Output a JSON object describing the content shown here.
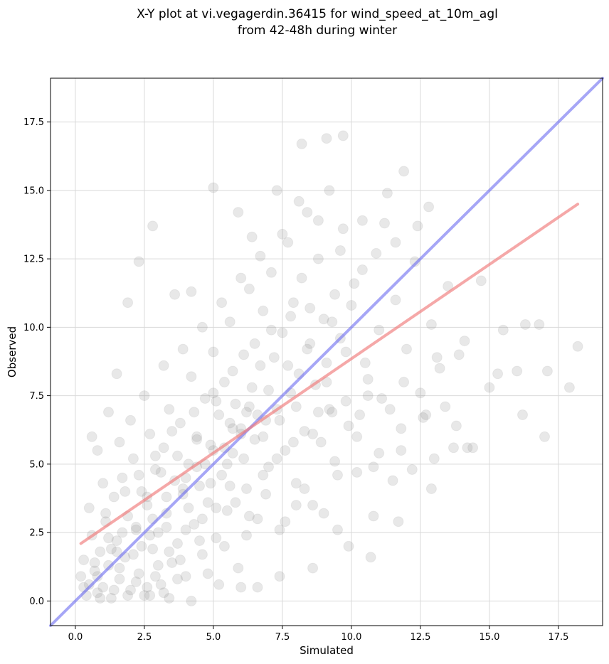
{
  "chart_data": {
    "type": "scatter",
    "title_line1": "X-Y plot at vi.vegagerdin.36415 for wind_speed_at_10m_agl",
    "title_line2": "from 42-48h during winter",
    "xlabel": "Simulated",
    "ylabel": "Observed",
    "xlim": [
      -0.9,
      19.1
    ],
    "ylim": [
      -0.9,
      19.1
    ],
    "xticks": [
      "0.0",
      "2.5",
      "5.0",
      "7.5",
      "10.0",
      "12.5",
      "15.0",
      "17.5"
    ],
    "yticks": [
      "0.0",
      "2.5",
      "5.0",
      "7.5",
      "10.0",
      "12.5",
      "15.0",
      "17.5"
    ],
    "grid": true,
    "point_color": "#808080",
    "point_alpha": 0.18,
    "identity_line": {
      "from": [
        -0.9,
        -0.9
      ],
      "to": [
        19.1,
        19.1
      ],
      "color": "#6b6bf0"
    },
    "regression_line": {
      "from": [
        0.2,
        2.1
      ],
      "to": [
        18.2,
        14.5
      ],
      "color": "#f07a7a"
    },
    "points": [
      [
        0.2,
        0.9
      ],
      [
        0.4,
        0.2
      ],
      [
        0.3,
        1.5
      ],
      [
        0.5,
        0.6
      ],
      [
        0.6,
        2.4
      ],
      [
        0.7,
        1.1
      ],
      [
        0.8,
        0.3
      ],
      [
        0.5,
        3.4
      ],
      [
        0.9,
        1.8
      ],
      [
        1.0,
        0.5
      ],
      [
        1.1,
        2.9
      ],
      [
        1.2,
        1.3
      ],
      [
        1.3,
        0.1
      ],
      [
        1.4,
        3.8
      ],
      [
        1.5,
        2.2
      ],
      [
        1.6,
        0.8
      ],
      [
        1.7,
        4.5
      ],
      [
        1.8,
        1.6
      ],
      [
        1.9,
        3.1
      ],
      [
        2.0,
        0.4
      ],
      [
        2.1,
        5.2
      ],
      [
        2.2,
        2.7
      ],
      [
        2.3,
        1.0
      ],
      [
        2.4,
        4.0
      ],
      [
        2.5,
        0.2
      ],
      [
        2.6,
        3.5
      ],
      [
        2.7,
        6.1
      ],
      [
        2.8,
        1.9
      ],
      [
        2.9,
        4.8
      ],
      [
        3.0,
        2.5
      ],
      [
        3.1,
        0.6
      ],
      [
        3.2,
        5.6
      ],
      [
        3.3,
        3.2
      ],
      [
        3.4,
        7.0
      ],
      [
        3.5,
        1.4
      ],
      [
        3.6,
        4.4
      ],
      [
        3.7,
        2.1
      ],
      [
        3.8,
        6.5
      ],
      [
        3.9,
        3.9
      ],
      [
        4.0,
        0.9
      ],
      [
        4.1,
        5.0
      ],
      [
        4.2,
        8.2
      ],
      [
        4.3,
        2.8
      ],
      [
        4.4,
        6.0
      ],
      [
        4.5,
        4.2
      ],
      [
        4.6,
        1.7
      ],
      [
        4.7,
        7.4
      ],
      [
        4.8,
        3.6
      ],
      [
        4.9,
        5.7
      ],
      [
        5.0,
        9.1
      ],
      [
        5.1,
        2.3
      ],
      [
        5.2,
        6.8
      ],
      [
        5.3,
        4.6
      ],
      [
        5.4,
        8.0
      ],
      [
        5.5,
        3.3
      ],
      [
        5.6,
        10.2
      ],
      [
        5.7,
        5.4
      ],
      [
        5.8,
        7.2
      ],
      [
        5.9,
        1.2
      ],
      [
        6.0,
        6.3
      ],
      [
        6.1,
        9.0
      ],
      [
        6.2,
        4.1
      ],
      [
        6.3,
        11.4
      ],
      [
        6.4,
        7.8
      ],
      [
        6.5,
        5.9
      ],
      [
        6.6,
        3.0
      ],
      [
        6.7,
        8.6
      ],
      [
        6.8,
        10.6
      ],
      [
        6.9,
        6.6
      ],
      [
        7.0,
        4.9
      ],
      [
        7.1,
        12.0
      ],
      [
        7.2,
        8.9
      ],
      [
        7.3,
        7.0
      ],
      [
        7.4,
        2.6
      ],
      [
        7.5,
        9.8
      ],
      [
        7.6,
        5.5
      ],
      [
        7.7,
        13.1
      ],
      [
        7.8,
        7.6
      ],
      [
        7.9,
        10.9
      ],
      [
        8.0,
        4.3
      ],
      [
        8.1,
        8.3
      ],
      [
        8.2,
        11.8
      ],
      [
        8.3,
        6.2
      ],
      [
        8.4,
        14.2
      ],
      [
        8.5,
        9.4
      ],
      [
        8.6,
        3.5
      ],
      [
        8.7,
        7.9
      ],
      [
        8.8,
        12.5
      ],
      [
        8.9,
        5.8
      ],
      [
        9.0,
        10.3
      ],
      [
        9.1,
        8.7
      ],
      [
        9.2,
        15.0
      ],
      [
        9.3,
        6.9
      ],
      [
        9.4,
        11.2
      ],
      [
        9.5,
        4.6
      ],
      [
        9.6,
        9.6
      ],
      [
        9.7,
        13.6
      ],
      [
        9.8,
        7.3
      ],
      [
        9.9,
        2.0
      ],
      [
        10.0,
        10.8
      ],
      [
        10.2,
        6.0
      ],
      [
        10.4,
        12.1
      ],
      [
        10.6,
        8.1
      ],
      [
        10.8,
        4.9
      ],
      [
        11.0,
        9.9
      ],
      [
        11.2,
        13.8
      ],
      [
        11.4,
        7.0
      ],
      [
        11.6,
        11.0
      ],
      [
        11.8,
        5.5
      ],
      [
        12.0,
        9.2
      ],
      [
        12.3,
        12.4
      ],
      [
        12.6,
        6.7
      ],
      [
        12.9,
        10.1
      ],
      [
        13.2,
        8.5
      ],
      [
        13.5,
        11.5
      ],
      [
        13.8,
        6.4
      ],
      [
        14.1,
        9.5
      ],
      [
        14.4,
        5.6
      ],
      [
        14.7,
        11.7
      ],
      [
        15.0,
        7.8
      ],
      [
        15.5,
        9.9
      ],
      [
        16.0,
        8.4
      ],
      [
        16.3,
        10.1
      ],
      [
        16.8,
        10.1
      ],
      [
        17.1,
        8.4
      ],
      [
        17.9,
        7.8
      ],
      [
        18.2,
        9.3
      ],
      [
        17.0,
        6.0
      ],
      [
        16.2,
        6.8
      ],
      [
        15.3,
        8.3
      ],
      [
        2.3,
        12.4
      ],
      [
        2.8,
        13.7
      ],
      [
        1.9,
        10.9
      ],
      [
        3.6,
        11.2
      ],
      [
        4.2,
        11.3
      ],
      [
        5.0,
        15.1
      ],
      [
        5.9,
        14.2
      ],
      [
        6.4,
        13.3
      ],
      [
        7.3,
        15.0
      ],
      [
        8.2,
        16.7
      ],
      [
        9.1,
        16.9
      ],
      [
        9.7,
        17.0
      ],
      [
        11.9,
        15.7
      ],
      [
        12.4,
        13.7
      ],
      [
        12.8,
        14.4
      ],
      [
        0.8,
        5.5
      ],
      [
        1.2,
        6.9
      ],
      [
        1.5,
        8.3
      ],
      [
        0.6,
        6.0
      ],
      [
        1.0,
        4.3
      ],
      [
        2.7,
        0.2
      ],
      [
        3.4,
        0.1
      ],
      [
        4.2,
        0.0
      ],
      [
        5.2,
        0.6
      ],
      [
        6.0,
        0.5
      ],
      [
        6.6,
        0.5
      ],
      [
        7.4,
        0.9
      ],
      [
        8.0,
        3.5
      ],
      [
        8.6,
        1.2
      ],
      [
        9.5,
        2.6
      ],
      [
        10.7,
        1.6
      ],
      [
        11.5,
        4.4
      ],
      [
        12.9,
        4.1
      ],
      [
        13.7,
        5.6
      ],
      [
        14.2,
        5.6
      ],
      [
        10.2,
        4.7
      ],
      [
        10.8,
        3.1
      ],
      [
        11.7,
        2.9
      ],
      [
        13.0,
        5.2
      ],
      [
        12.7,
        6.8
      ],
      [
        1.3,
        1.9
      ],
      [
        2.2,
        0.7
      ],
      [
        2.4,
        2.0
      ],
      [
        3.0,
        1.3
      ],
      [
        3.3,
        2.7
      ],
      [
        2.6,
        3.8
      ],
      [
        1.7,
        2.5
      ],
      [
        2.9,
        0.9
      ],
      [
        3.8,
        1.5
      ],
      [
        4.5,
        2.2
      ],
      [
        4.1,
        3.4
      ],
      [
        4.8,
        1.0
      ],
      [
        5.4,
        2.0
      ],
      [
        5.8,
        3.6
      ],
      [
        6.2,
        2.4
      ],
      [
        6.9,
        3.9
      ],
      [
        7.6,
        2.9
      ],
      [
        8.3,
        4.1
      ],
      [
        9.0,
        3.2
      ],
      [
        9.4,
        5.1
      ],
      [
        3.1,
        4.7
      ],
      [
        3.7,
        5.3
      ],
      [
        4.4,
        5.9
      ],
      [
        4.9,
        4.3
      ],
      [
        5.5,
        5.0
      ],
      [
        6.1,
        5.2
      ],
      [
        6.8,
        6.0
      ],
      [
        7.4,
        6.6
      ],
      [
        8.0,
        7.1
      ],
      [
        8.8,
        6.9
      ],
      [
        5.1,
        7.3
      ],
      [
        5.7,
        8.4
      ],
      [
        6.5,
        9.4
      ],
      [
        7.1,
        9.9
      ],
      [
        7.8,
        10.4
      ],
      [
        8.5,
        10.7
      ],
      [
        9.3,
        10.2
      ],
      [
        10.1,
        11.6
      ],
      [
        10.9,
        12.7
      ],
      [
        11.6,
        13.1
      ],
      [
        1.6,
        5.8
      ],
      [
        2.0,
        6.6
      ],
      [
        2.5,
        7.5
      ],
      [
        3.2,
        8.6
      ],
      [
        3.9,
        9.2
      ],
      [
        4.6,
        10.0
      ],
      [
        5.3,
        10.9
      ],
      [
        6.0,
        11.8
      ],
      [
        6.7,
        12.6
      ],
      [
        7.5,
        13.4
      ],
      [
        8.1,
        14.6
      ],
      [
        8.8,
        13.9
      ],
      [
        9.6,
        12.8
      ],
      [
        10.4,
        13.9
      ],
      [
        11.3,
        14.9
      ],
      [
        1.1,
        3.2
      ],
      [
        1.8,
        4.0
      ],
      [
        2.3,
        4.6
      ],
      [
        2.9,
        5.3
      ],
      [
        3.5,
        6.2
      ],
      [
        4.3,
        6.9
      ],
      [
        5.0,
        7.6
      ],
      [
        5.6,
        6.5
      ],
      [
        6.3,
        7.1
      ],
      [
        7.0,
        7.7
      ],
      [
        7.7,
        8.6
      ],
      [
        8.4,
        9.2
      ],
      [
        9.1,
        8.0
      ],
      [
        9.8,
        9.1
      ],
      [
        10.5,
        8.7
      ],
      [
        11.1,
        7.4
      ],
      [
        11.9,
        8.0
      ],
      [
        12.5,
        7.6
      ],
      [
        13.1,
        8.9
      ],
      [
        13.9,
        9.0
      ],
      [
        10.3,
        6.8
      ],
      [
        11.0,
        5.4
      ],
      [
        11.8,
        6.3
      ],
      [
        12.2,
        4.8
      ],
      [
        13.4,
        7.1
      ],
      [
        0.9,
        0.1
      ],
      [
        1.4,
        0.4
      ],
      [
        1.9,
        0.2
      ],
      [
        2.6,
        0.5
      ],
      [
        3.2,
        0.3
      ],
      [
        3.7,
        0.8
      ],
      [
        0.3,
        0.5
      ],
      [
        0.7,
        1.4
      ],
      [
        1.2,
        2.3
      ],
      [
        1.6,
        1.2
      ],
      [
        2.1,
        1.7
      ],
      [
        2.7,
        2.4
      ],
      [
        3.4,
        1.8
      ],
      [
        4.0,
        2.6
      ],
      [
        4.6,
        3.0
      ],
      [
        5.1,
        3.4
      ],
      [
        5.6,
        4.2
      ],
      [
        6.3,
        3.1
      ],
      [
        6.8,
        4.6
      ],
      [
        7.3,
        5.2
      ],
      [
        7.9,
        5.8
      ],
      [
        8.6,
        6.1
      ],
      [
        9.2,
        7.0
      ],
      [
        9.9,
        6.4
      ],
      [
        10.6,
        7.5
      ],
      [
        4.0,
        4.5
      ],
      [
        4.7,
        5.0
      ],
      [
        5.4,
        5.6
      ],
      [
        6.0,
        6.1
      ],
      [
        6.6,
        6.8
      ],
      [
        3.3,
        3.8
      ],
      [
        2.8,
        3.0
      ],
      [
        2.2,
        2.6
      ],
      [
        1.5,
        1.8
      ],
      [
        0.8,
        0.9
      ],
      [
        3.9,
        4.1
      ],
      [
        4.4,
        4.9
      ],
      [
        5.0,
        5.5
      ],
      [
        5.7,
        6.3
      ],
      [
        6.2,
        6.9
      ]
    ]
  }
}
